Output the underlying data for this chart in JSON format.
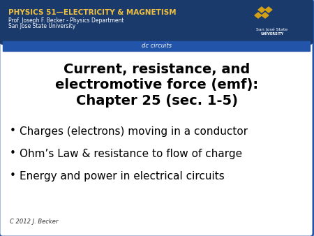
{
  "header_bg_color": "#1a3a6b",
  "header_text1": "PHYSICS 51—ELECTRICITY & MAGNETISM",
  "header_text2": "Prof. Joseph F. Becker - Physics Department",
  "header_text3": "San Jose State University",
  "subheader_text": "dc circuits",
  "subheader_bg": "#2255aa",
  "title_line1": "Current, resistance, and",
  "title_line2": "electromotive force (emf):",
  "title_line3": "Chapter 25 (sec. 1-5)",
  "bullet1": "Charges (electrons) moving in a conductor",
  "bullet2": "Ohm’s Law & resistance to flow of charge",
  "bullet3": "Energy and power in electrical circuits",
  "copyright": "C 2012 J. Becker",
  "main_bg": "#f0f0f0",
  "body_bg": "#ffffff",
  "header_title_color": "#f0c040",
  "header_sub_color": "#ffffff",
  "bullet_color": "#000000",
  "title_color": "#000000",
  "border_color": "#2255aa"
}
